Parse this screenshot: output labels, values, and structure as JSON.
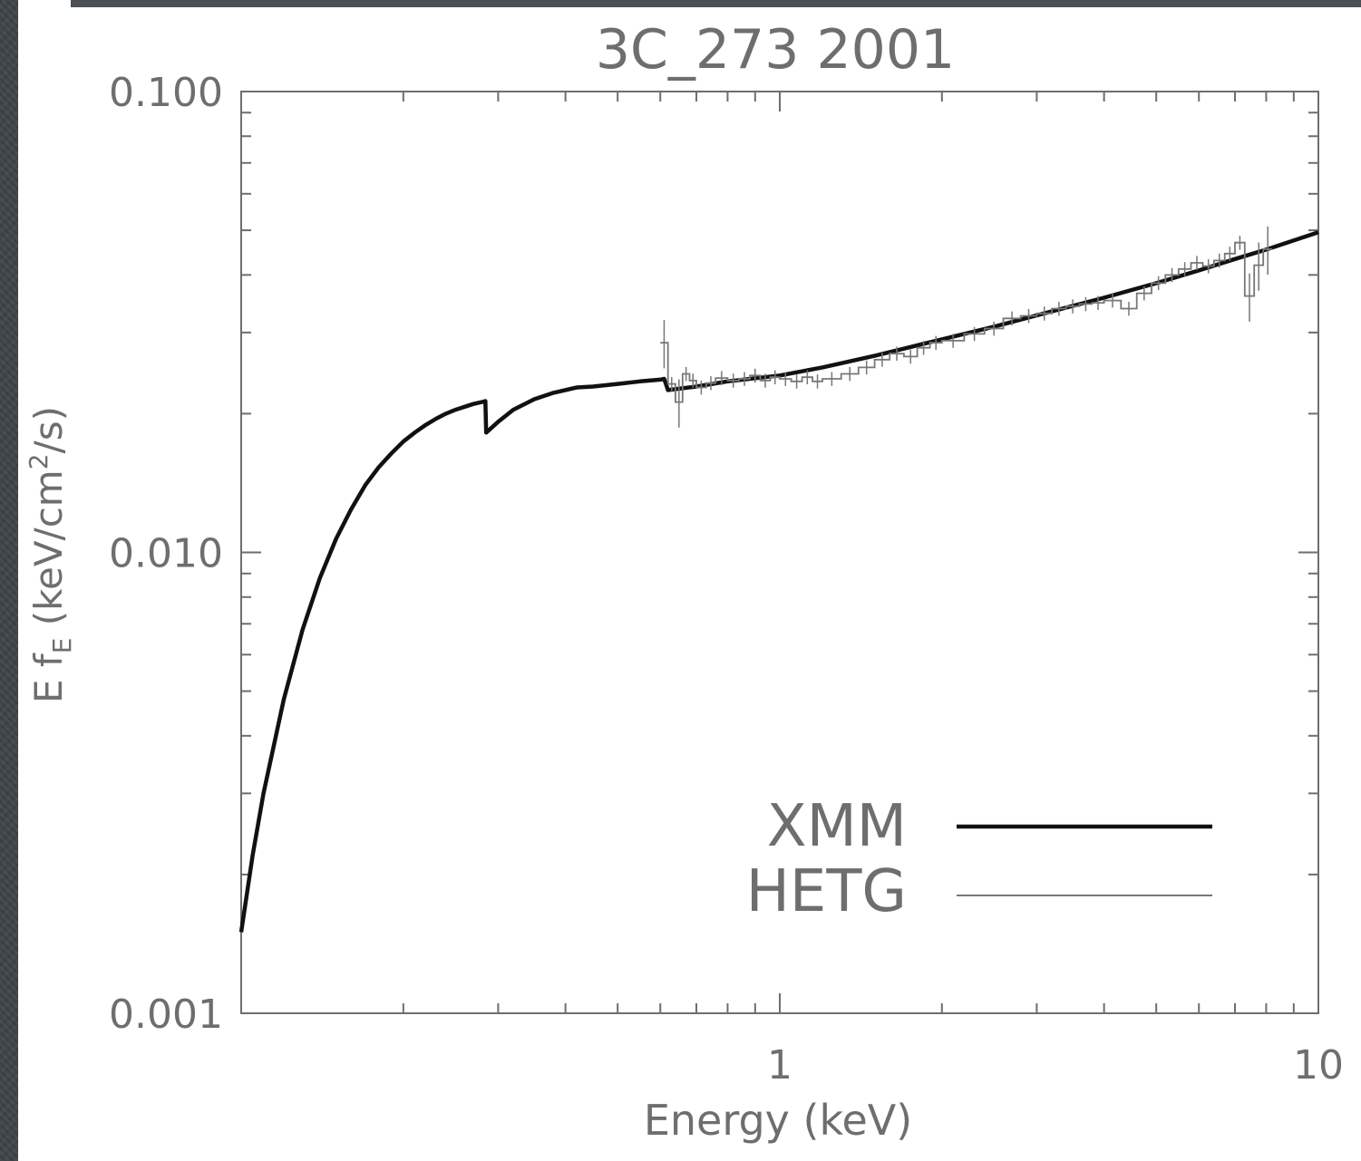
{
  "chart_data": {
    "type": "line",
    "title": "3C_273   2001",
    "xlabel": "Energy (keV)",
    "ylabel_main": "E f",
    "ylabel_sub": "E",
    "ylabel_rest": " (keV/cm",
    "ylabel_sup": "2",
    "ylabel_end": "/s)",
    "x_scale": "log",
    "y_scale": "log",
    "xlim": [
      0.1,
      10
    ],
    "ylim": [
      0.001,
      0.1
    ],
    "x_ticks": [
      {
        "value": 1,
        "label": "1"
      },
      {
        "value": 10,
        "label": "10"
      }
    ],
    "y_ticks": [
      {
        "value": 0.001,
        "label": "0.001"
      },
      {
        "value": 0.01,
        "label": "0.010"
      },
      {
        "value": 0.1,
        "label": "0.100"
      }
    ],
    "grid": false,
    "legend_position": "bottom-right",
    "series": [
      {
        "name": "XMM",
        "style": "thick",
        "x": [
          0.1,
          0.105,
          0.11,
          0.12,
          0.13,
          0.14,
          0.15,
          0.16,
          0.17,
          0.18,
          0.19,
          0.2,
          0.21,
          0.22,
          0.23,
          0.24,
          0.25,
          0.26,
          0.27,
          0.28,
          0.284,
          0.285,
          0.3,
          0.32,
          0.35,
          0.38,
          0.42,
          0.45,
          0.5,
          0.55,
          0.6,
          0.61,
          0.62,
          0.7,
          0.8,
          1.0,
          1.2,
          1.5,
          2.0,
          2.5,
          3.0,
          4.0,
          5.0,
          6.0,
          7.0,
          8.0,
          10.0
        ],
        "y": [
          0.0015,
          0.0022,
          0.003,
          0.0048,
          0.0068,
          0.0088,
          0.0107,
          0.0124,
          0.014,
          0.0153,
          0.0164,
          0.0174,
          0.0182,
          0.0189,
          0.0195,
          0.02,
          0.0204,
          0.0207,
          0.021,
          0.0212,
          0.0213,
          0.0182,
          0.0192,
          0.0204,
          0.0215,
          0.0222,
          0.0228,
          0.0229,
          0.0232,
          0.0235,
          0.0237,
          0.0238,
          0.0225,
          0.0229,
          0.0235,
          0.0242,
          0.0252,
          0.0267,
          0.029,
          0.0309,
          0.0327,
          0.0357,
          0.0384,
          0.0409,
          0.0433,
          0.0454,
          0.0495
        ]
      },
      {
        "name": "HETG",
        "style": "thin-step",
        "x": [
          0.6,
          0.62,
          0.64,
          0.66,
          0.68,
          0.7,
          0.73,
          0.76,
          0.8,
          0.84,
          0.88,
          0.92,
          0.96,
          1.0,
          1.05,
          1.1,
          1.15,
          1.2,
          1.3,
          1.4,
          1.5,
          1.6,
          1.7,
          1.8,
          1.9,
          2.0,
          2.2,
          2.4,
          2.6,
          2.8,
          3.0,
          3.2,
          3.4,
          3.6,
          3.8,
          4.0,
          4.3,
          4.6,
          4.9,
          5.2,
          5.5,
          5.8,
          6.1,
          6.4,
          6.7,
          7.0,
          7.3,
          7.6,
          7.9
        ],
        "y": [
          0.0285,
          0.0232,
          0.0212,
          0.0244,
          0.0236,
          0.0228,
          0.0233,
          0.0239,
          0.0236,
          0.0238,
          0.0242,
          0.0236,
          0.024,
          0.0238,
          0.0235,
          0.024,
          0.0235,
          0.0238,
          0.0244,
          0.0252,
          0.0262,
          0.027,
          0.0266,
          0.0278,
          0.0285,
          0.0288,
          0.0298,
          0.0306,
          0.0322,
          0.0326,
          0.033,
          0.0338,
          0.0342,
          0.0346,
          0.0348,
          0.0352,
          0.0338,
          0.0365,
          0.0384,
          0.04,
          0.0412,
          0.0425,
          0.0418,
          0.043,
          0.0445,
          0.047,
          0.036,
          0.042,
          0.0455
        ]
      }
    ]
  },
  "legend": {
    "items": [
      {
        "label": "XMM",
        "style": "thick"
      },
      {
        "label": "HETG",
        "style": "thin"
      }
    ]
  },
  "colors": {
    "axis": "#6e6e6e",
    "xmm_line": "#111111",
    "hetg_line": "#777777"
  }
}
